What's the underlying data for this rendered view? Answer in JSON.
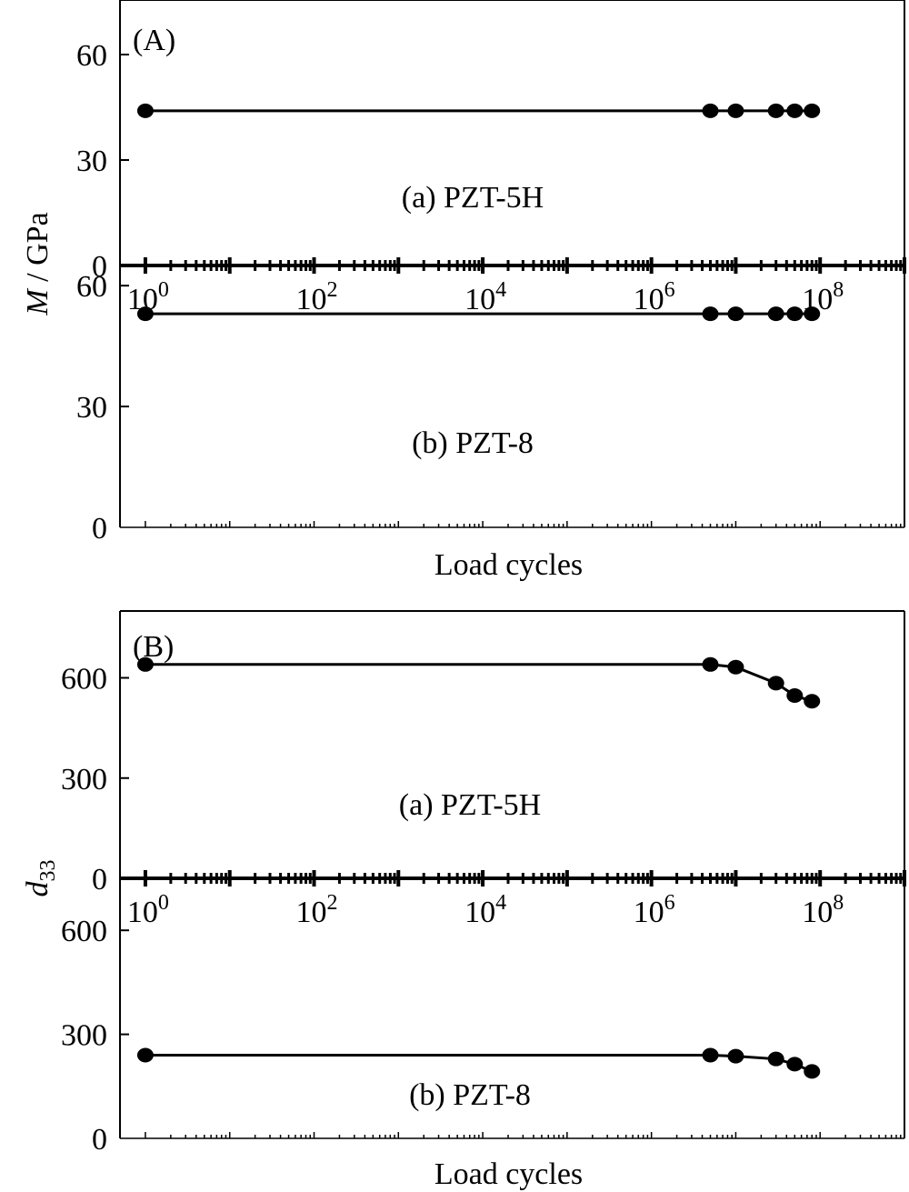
{
  "chart_data": [
    {
      "type": "line",
      "panel_label": "(A)",
      "ylabel_italic": "M",
      "ylabel_rest": " / GPa",
      "xlabel": "Load cycles",
      "xscale": "log",
      "xlim": [
        0.5,
        1000000000
      ],
      "middle_axis_ticks": [
        "10",
        "10",
        "10",
        "10",
        "10"
      ],
      "middle_axis_exponents": [
        "0",
        "2",
        "4",
        "6",
        "8"
      ],
      "middle_axis_values": [
        1,
        100,
        10000,
        1000000,
        100000000
      ],
      "upper_yticks": [
        "0",
        "30",
        "60"
      ],
      "upper_ytick_values": [
        0,
        30,
        60
      ],
      "upper_ylim": [
        0,
        75
      ],
      "lower_yticks": [
        "0",
        "30",
        "60"
      ],
      "lower_ytick_values": [
        0,
        30,
        60
      ],
      "lower_ylim": [
        0,
        65
      ],
      "series": [
        {
          "name": "(a) PZT-5H",
          "x": [
            1,
            5000000,
            10000000,
            30000000,
            50000000,
            80000000
          ],
          "y": [
            44,
            44,
            44,
            44,
            44,
            44
          ]
        },
        {
          "name": "(b) PZT-8",
          "x": [
            1,
            5000000,
            10000000,
            30000000,
            50000000,
            80000000
          ],
          "y": [
            53,
            53,
            53,
            53,
            53,
            53
          ]
        }
      ]
    },
    {
      "type": "line",
      "panel_label": "(B)",
      "ylabel_main": "d",
      "ylabel_sub": "33",
      "xlabel": "Load cycles",
      "xscale": "log",
      "xlim": [
        0.5,
        1000000000
      ],
      "middle_axis_ticks": [
        "10",
        "10",
        "10",
        "10",
        "10"
      ],
      "middle_axis_exponents": [
        "0",
        "2",
        "4",
        "6",
        "8"
      ],
      "middle_axis_values": [
        1,
        100,
        10000,
        1000000,
        100000000
      ],
      "upper_yticks": [
        "0",
        "300",
        "600"
      ],
      "upper_ytick_values": [
        0,
        300,
        600
      ],
      "upper_ylim": [
        0,
        800
      ],
      "lower_yticks": [
        "0",
        "300",
        "600"
      ],
      "lower_ytick_values": [
        0,
        300,
        600
      ],
      "lower_ylim": [
        0,
        750
      ],
      "series": [
        {
          "name": "(a) PZT-5H",
          "x": [
            1,
            5000000,
            10000000,
            30000000,
            50000000,
            80000000
          ],
          "y": [
            640,
            640,
            632,
            584,
            547,
            530
          ]
        },
        {
          "name": "(b) PZT-8",
          "x": [
            1,
            5000000,
            10000000,
            30000000,
            50000000,
            80000000
          ],
          "y": [
            240,
            240,
            237,
            229,
            214,
            193
          ]
        }
      ]
    }
  ]
}
